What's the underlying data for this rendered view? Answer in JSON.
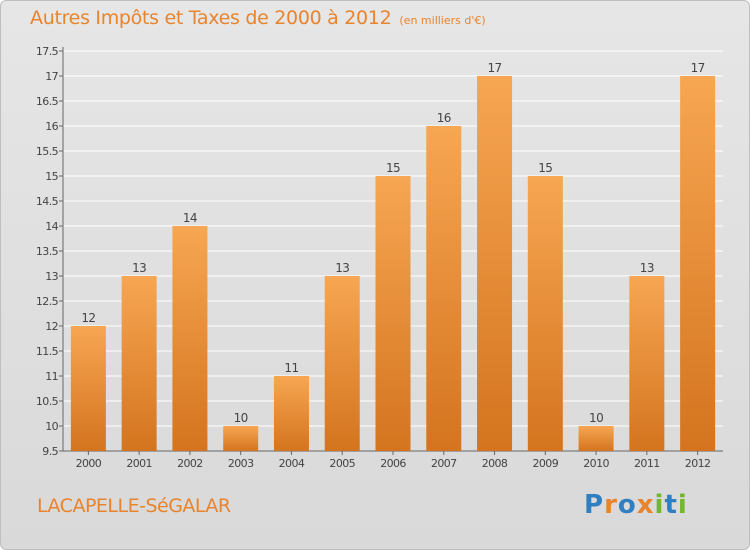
{
  "header": {
    "title": "Autres Impôts et Taxes de 2000 à 2012",
    "subtitle": "(en milliers d'€)"
  },
  "footer": {
    "commune": "LACAPELLE-SéGALAR",
    "brand": "Proxiti",
    "brand_letters": [
      {
        "ch": "P",
        "color": "#2f7fc1"
      },
      {
        "ch": "r",
        "color": "#e8842d"
      },
      {
        "ch": "o",
        "color": "#2f7fc1"
      },
      {
        "ch": "x",
        "color": "#e8842d"
      },
      {
        "ch": "i",
        "color": "#74b72e"
      },
      {
        "ch": "t",
        "color": "#2f7fc1"
      },
      {
        "ch": "i",
        "color": "#74b72e"
      }
    ]
  },
  "chart_data": {
    "type": "bar",
    "title": "Autres Impôts et Taxes de 2000 à 2012",
    "subtitle": "(en milliers d'€)",
    "categories": [
      "2000",
      "2001",
      "2002",
      "2003",
      "2004",
      "2005",
      "2006",
      "2007",
      "2008",
      "2009",
      "2010",
      "2011",
      "2012"
    ],
    "values": [
      12,
      13,
      14,
      10,
      11,
      13,
      15,
      16,
      17,
      15,
      10,
      13,
      17
    ],
    "ylim": [
      9.5,
      17.5
    ],
    "yticks": [
      "9.5",
      "10",
      "10.5",
      "11",
      "11.5",
      "12",
      "12.5",
      "13",
      "13.5",
      "14",
      "14.5",
      "15",
      "15.5",
      "16",
      "16.5",
      "17",
      "17.5"
    ],
    "grid": true,
    "colors": {
      "bar_top": "#f7a652",
      "bar_bottom": "#d4741f",
      "label": "#444444",
      "grid": "#ffffff"
    }
  }
}
